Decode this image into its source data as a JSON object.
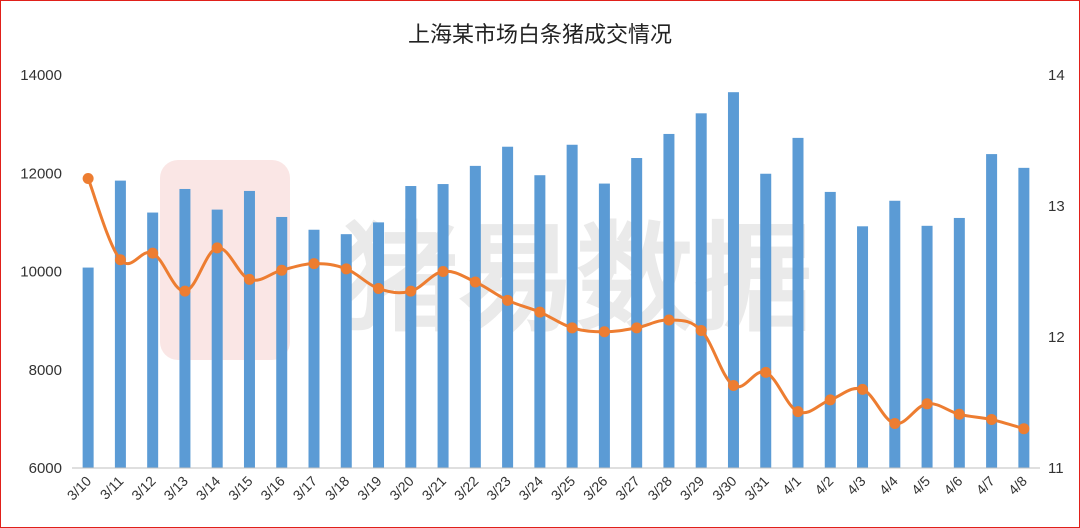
{
  "chart_data": {
    "type": "bar+line",
    "title": "上海某市场白条猪成交情况",
    "watermark": "猪易数据",
    "categories": [
      "3/10",
      "3/11",
      "3/12",
      "3/13",
      "3/14",
      "3/15",
      "3/16",
      "3/17",
      "3/18",
      "3/19",
      "3/20",
      "3/21",
      "3/22",
      "3/23",
      "3/24",
      "3/25",
      "3/26",
      "3/27",
      "3/28",
      "3/29",
      "3/30",
      "3/31",
      "4/1",
      "4/2",
      "4/3",
      "4/4",
      "4/5",
      "4/6",
      "4/7",
      "4/8"
    ],
    "left_axis": {
      "ylim": [
        6000,
        14000
      ],
      "ticks": [
        6000,
        8000,
        10000,
        12000,
        14000
      ]
    },
    "right_axis": {
      "ylim": [
        11,
        14
      ],
      "ticks": [
        11,
        12,
        13,
        14
      ]
    },
    "series": [
      {
        "type": "bar",
        "axis": "left",
        "color": "#5b9bd5",
        "values": [
          10080,
          11850,
          11200,
          11680,
          11260,
          11640,
          11110,
          10850,
          10760,
          11000,
          11740,
          11780,
          12150,
          12540,
          11960,
          12580,
          11790,
          12310,
          12800,
          13220,
          13650,
          11990,
          12720,
          11620,
          10920,
          11440,
          10930,
          11090,
          12390,
          12110
        ]
      },
      {
        "type": "line",
        "axis": "right",
        "color": "#ed7d31",
        "values": [
          13.21,
          12.59,
          12.64,
          12.35,
          12.68,
          12.44,
          12.51,
          12.56,
          12.52,
          12.37,
          12.35,
          12.5,
          12.42,
          12.28,
          12.19,
          12.07,
          12.04,
          12.07,
          12.13,
          12.05,
          11.63,
          11.73,
          11.43,
          11.52,
          11.6,
          11.34,
          11.49,
          11.41,
          11.37,
          11.3
        ]
      }
    ],
    "grid": false,
    "legend": "none"
  }
}
